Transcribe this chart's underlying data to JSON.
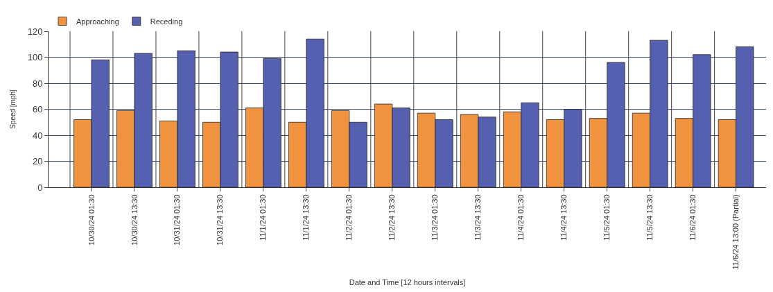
{
  "chart_data": {
    "type": "bar",
    "xlabel": "Date and Time [12 hours intervals]",
    "ylabel": "Speed [mph]",
    "categories": [
      "10/30/24 01:30",
      "10/30/24 13:30",
      "10/31/24 01:30",
      "10/31/24 13:30",
      "11/1/24 01:30",
      "11/1/24 13:30",
      "11/2/24 01:30",
      "11/2/24 13:30",
      "11/3/24 01:30",
      "11/3/24 13:30",
      "11/4/24 01:30",
      "11/4/24 13:30",
      "11/5/24 01:30",
      "11/5/24 13:30",
      "11/6/24 01:30",
      "11/6/24 13:00 (Partial)"
    ],
    "series": [
      {
        "name": "Approaching",
        "color": "#f0923e",
        "values": [
          52,
          59,
          51,
          50,
          61,
          50,
          59,
          64,
          57,
          56,
          58,
          52,
          53,
          57,
          53,
          52
        ]
      },
      {
        "name": "Receding",
        "color": "#5560b0",
        "values": [
          98,
          103,
          105,
          104,
          99,
          114,
          50,
          61,
          52,
          54,
          65,
          60,
          96,
          113,
          102,
          108
        ]
      }
    ],
    "ylim": [
      0,
      120
    ],
    "yticks": [
      0,
      20,
      40,
      60,
      80,
      100,
      120
    ],
    "grid": true,
    "legend": "top left"
  }
}
